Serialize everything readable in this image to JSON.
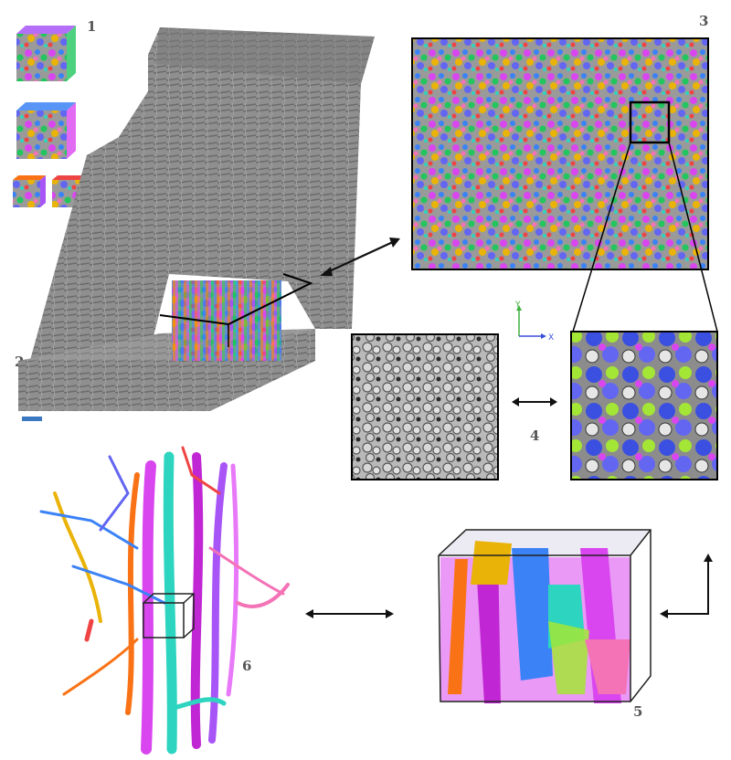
{
  "figure": {
    "panel_labels": [
      "1",
      "2",
      "3",
      "4",
      "5",
      "6"
    ],
    "axis_labels": {
      "y": "Y",
      "x": "X"
    }
  },
  "colors": {
    "em_gray": "#8a8a8a",
    "em_dark": "#5e5e5e",
    "arrow": "#111111",
    "scale_bar": "#3b78c2",
    "axis_y": "#3fb13f",
    "axis_x": "#3a4fd8",
    "segment_palette": [
      "#d946ef",
      "#3b82f6",
      "#22c55e",
      "#f97316",
      "#eab308",
      "#2dd4bf",
      "#ef4444",
      "#a855f7",
      "#f472b6",
      "#6366f1"
    ]
  },
  "icons": [
    "double-arrow-icon",
    "corner-arrow-icon",
    "axis-icon",
    "scale-bar-icon"
  ]
}
